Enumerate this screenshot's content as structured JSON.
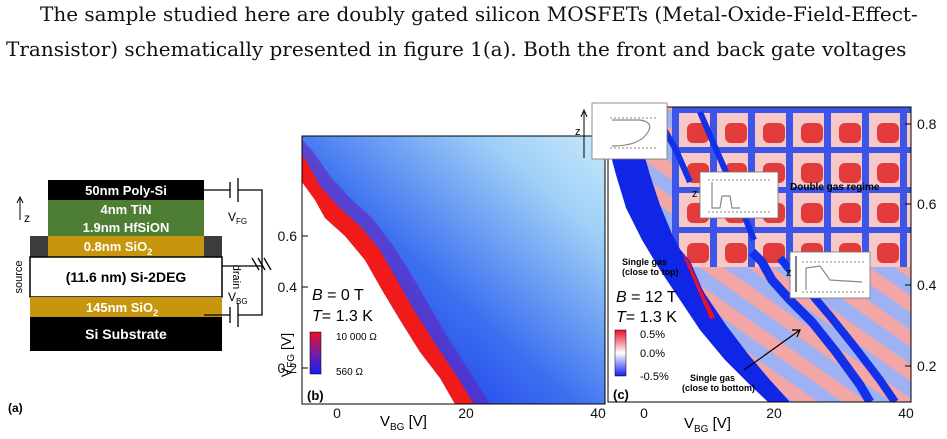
{
  "text": {
    "line1": "The sample studied here are doubly gated silicon MOSFETs (Metal-Oxide-Field-Effect-",
    "line2": "Transistor) schematically presented in figure 1(a).  Both the front and back gate voltages"
  },
  "panel_a": {
    "label": "(a)",
    "layers": [
      "50nm Poly-Si",
      "4nm TiN",
      "1.9nm HfSiON",
      "0.8nm SiO",
      "(11.6 nm) Si-2DEG",
      "145nm SiO",
      "Si Substrate"
    ],
    "sub2": "2",
    "source": "source",
    "drain": "drain",
    "z": "z",
    "vfg": "V",
    "vfg_sub": "FG",
    "vbg": "V",
    "vbg_sub": "BG",
    "colors": {
      "black": "#000000",
      "green": "#4e7d34",
      "gold": "#c8960c",
      "grey": "#3c3c3c"
    }
  },
  "panel_b": {
    "label": "(b)",
    "B": "B",
    "B_val": " = 0 T",
    "T": "T",
    "T_val": "= 1.3 K",
    "scale_max": "10 000 Ω",
    "scale_min": "560 Ω",
    "ylabel": "V",
    "ylabel_sub": "FG",
    "ylabel_unit": " [V]",
    "xlabel": "V",
    "xlabel_sub": "BG",
    "xlabel_unit": " [V]",
    "y_ticks": [
      "0.6",
      "0.4",
      "0.2"
    ],
    "x_ticks": [
      "0",
      "20",
      "40"
    ]
  },
  "panel_c": {
    "label": "(c)",
    "B": "B",
    "B_val": " = 12 T",
    "T": "T",
    "T_val": "= 1.3 K",
    "scale_top": "0.5%",
    "scale_mid": "0.0%",
    "scale_bot": "-0.5%",
    "double_gas": "Double gas  regime",
    "single_top": [
      "Single gas",
      "(close to top)"
    ],
    "single_bottom": [
      "Single gas",
      "(close to bottom)"
    ],
    "xlabel": "V",
    "xlabel_sub": "BG",
    "xlabel_unit": " [V]",
    "y_ticks": [
      "0.8",
      "0.6",
      "0.4",
      "0.2"
    ],
    "x_ticks": [
      "0",
      "20",
      "40"
    ],
    "z": "z"
  }
}
